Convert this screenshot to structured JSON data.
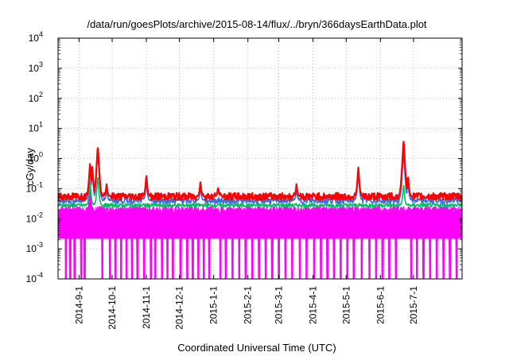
{
  "chart_data": {
    "type": "line",
    "title": "/data/run/goesPlots/archive/2015-08-14/flux/../bryn/366daysEarthData.plot",
    "xlabel": "Coordinated Universal Time (UTC)",
    "ylabel": "cGy/day",
    "yscale": "log",
    "ylim": [
      0.0001,
      10000
    ],
    "xlim": [
      "2014-08-13",
      "2015-08-14"
    ],
    "grid": true,
    "legend": "none",
    "y_ticks": [
      {
        "base": "10",
        "exp": "-4",
        "value": 0.0001
      },
      {
        "base": "10",
        "exp": "-3",
        "value": 0.001
      },
      {
        "base": "10",
        "exp": "-2",
        "value": 0.01
      },
      {
        "base": "10",
        "exp": "-1",
        "value": 0.1
      },
      {
        "base": "10",
        "exp": "0",
        "value": 1
      },
      {
        "base": "10",
        "exp": "1",
        "value": 10
      },
      {
        "base": "10",
        "exp": "2",
        "value": 100
      },
      {
        "base": "10",
        "exp": "3",
        "value": 1000
      },
      {
        "base": "10",
        "exp": "4",
        "value": 10000
      }
    ],
    "x_ticks": [
      {
        "label": "2014-9-1",
        "date": "2014-09-01"
      },
      {
        "label": "2014-10-1",
        "date": "2014-10-01"
      },
      {
        "label": "2014-11-1",
        "date": "2014-11-01"
      },
      {
        "label": "2014-12-1",
        "date": "2014-12-01"
      },
      {
        "label": "2015-1-1",
        "date": "2015-01-01"
      },
      {
        "label": "2015-2-1",
        "date": "2015-02-01"
      },
      {
        "label": "2015-3-1",
        "date": "2015-03-01"
      },
      {
        "label": "2015-4-1",
        "date": "2015-04-01"
      },
      {
        "label": "2015-5-1",
        "date": "2015-05-01"
      },
      {
        "label": "2015-6-1",
        "date": "2015-06-01"
      },
      {
        "label": "2015-7-1",
        "date": "2015-07-01"
      }
    ],
    "series": [
      {
        "color": "#ff0000",
        "baseline": 0.055,
        "jitter": 0.12,
        "peaks": [
          {
            "date": "2014-09-11",
            "value": 0.8
          },
          {
            "date": "2014-09-13",
            "value": 0.6
          },
          {
            "date": "2014-09-18",
            "value": 3.0
          },
          {
            "date": "2014-09-26",
            "value": 0.15
          },
          {
            "date": "2014-11-01",
            "value": 0.3
          },
          {
            "date": "2014-12-20",
            "value": 0.18
          },
          {
            "date": "2015-01-05",
            "value": 0.12
          },
          {
            "date": "2015-03-17",
            "value": 0.15
          },
          {
            "date": "2015-05-12",
            "value": 0.55
          },
          {
            "date": "2015-06-22",
            "value": 4.5
          },
          {
            "date": "2015-06-26",
            "value": 0.3
          }
        ]
      },
      {
        "color": "#3a6fe0",
        "baseline": 0.04,
        "jitter": 0.1,
        "peaks": [
          {
            "date": "2014-09-11",
            "value": 0.6
          },
          {
            "date": "2014-09-13",
            "value": 0.45
          },
          {
            "date": "2014-09-18",
            "value": 2.0
          },
          {
            "date": "2014-09-26",
            "value": 0.1
          },
          {
            "date": "2014-11-01",
            "value": 0.2
          },
          {
            "date": "2014-12-20",
            "value": 0.12
          },
          {
            "date": "2015-03-17",
            "value": 0.1
          },
          {
            "date": "2015-05-12",
            "value": 0.4
          },
          {
            "date": "2015-06-22",
            "value": 2.0
          },
          {
            "date": "2015-06-26",
            "value": 0.2
          }
        ]
      },
      {
        "color": "#00c060",
        "baseline": 0.028,
        "jitter": 0.06,
        "peaks": [
          {
            "date": "2014-09-11",
            "value": 0.2
          },
          {
            "date": "2014-09-18",
            "value": 0.3
          },
          {
            "date": "2015-06-22",
            "value": 0.15
          }
        ]
      },
      {
        "color": "#ff00ff",
        "baseline": 0.018,
        "jitter": 0.15,
        "peaks": [
          {
            "date": "2014-09-11",
            "value": 0.1
          }
        ],
        "dropouts": [
          "2014-08-20",
          "2014-08-24",
          "2014-08-28",
          "2014-09-03",
          "2014-09-06",
          "2014-09-22",
          "2014-09-29",
          "2014-10-04",
          "2014-10-09",
          "2014-10-14",
          "2014-10-19",
          "2014-10-24",
          "2014-10-30",
          "2014-11-05",
          "2014-11-09",
          "2014-11-15",
          "2014-11-20",
          "2014-11-25",
          "2014-12-02",
          "2014-12-08",
          "2014-12-13",
          "2014-12-18",
          "2014-12-23",
          "2014-12-28",
          "2015-01-07",
          "2015-01-12",
          "2015-01-18",
          "2015-01-24",
          "2015-01-30",
          "2015-02-05",
          "2015-02-11",
          "2015-02-17",
          "2015-02-23",
          "2015-03-01",
          "2015-03-07",
          "2015-03-13",
          "2015-03-20",
          "2015-03-26",
          "2015-04-02",
          "2015-04-08",
          "2015-04-14",
          "2015-04-20",
          "2015-04-26",
          "2015-05-02",
          "2015-05-08",
          "2015-05-15",
          "2015-05-22",
          "2015-05-28",
          "2015-06-03",
          "2015-06-09",
          "2015-06-15",
          "2015-06-29",
          "2015-07-04",
          "2015-07-10",
          "2015-07-16",
          "2015-07-22",
          "2015-07-28",
          "2015-08-03",
          "2015-08-09"
        ]
      }
    ]
  }
}
